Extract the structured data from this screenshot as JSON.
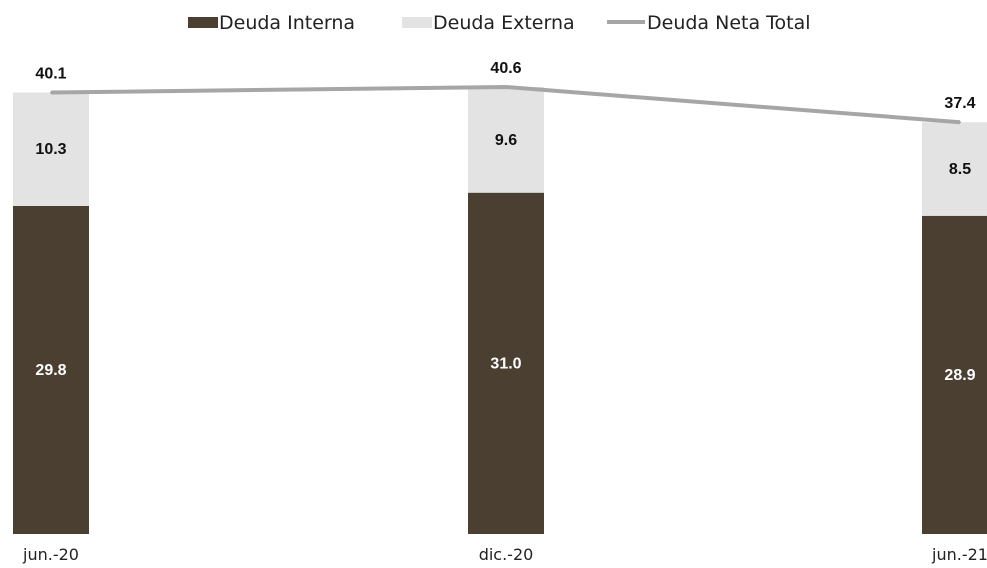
{
  "chart_data": {
    "type": "bar",
    "stacked": true,
    "categories": [
      "jun.-20",
      "dic.-20",
      "jun.-21"
    ],
    "series": [
      {
        "name": "Deuda Interna",
        "type": "bar",
        "color": "#4a3f30",
        "label_color": "#ffffff",
        "values": [
          29.8,
          31.0,
          28.9
        ],
        "labels": [
          "29.8",
          "31.0",
          "28.9"
        ]
      },
      {
        "name": "Deuda Externa",
        "type": "bar",
        "color": "#e3e3e3",
        "label_color": "#111111",
        "values": [
          10.3,
          9.6,
          8.5
        ],
        "labels": [
          "10.3",
          "9.6",
          "8.5"
        ]
      },
      {
        "name": "Deuda Neta Total",
        "type": "line",
        "color": "#a6a6a6",
        "label_color": "#111111",
        "values": [
          40.1,
          40.6,
          37.4
        ],
        "labels": [
          "40.1",
          "40.6",
          "37.4"
        ]
      }
    ],
    "ylim": [
      0,
      40.6
    ],
    "grid": false,
    "legend_position": "top-center"
  }
}
